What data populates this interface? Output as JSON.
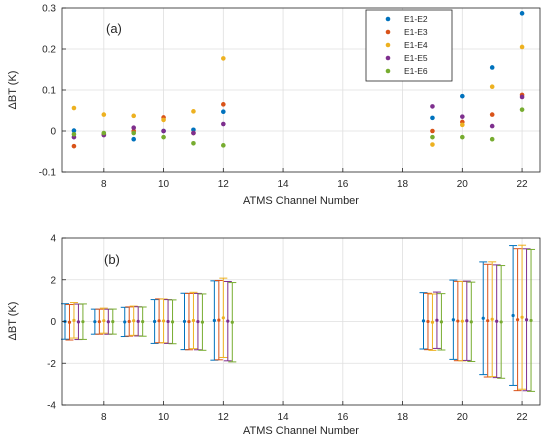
{
  "chart_data": [
    {
      "type": "scatter",
      "panel_label": "(a)",
      "xlabel": "ATMS Channel Number",
      "ylabel": "ΔBT (K)",
      "xlim": [
        6.6,
        22.6
      ],
      "ylim": [
        -0.1,
        0.3
      ],
      "xticks": [
        8,
        10,
        12,
        14,
        16,
        18,
        20,
        22
      ],
      "yticks": [
        -0.1,
        0,
        0.1,
        0.2,
        0.3
      ],
      "ytick_labels": [
        "-0.1",
        "0",
        "0.1",
        "0.2",
        "0.3"
      ],
      "grid": true,
      "legend": "top-right",
      "categories": [
        7,
        8,
        9,
        10,
        11,
        12,
        19,
        20,
        21,
        22
      ],
      "series": [
        {
          "name": "E1-E2",
          "color": "#0072BD",
          "values": [
            0.001,
            -0.008,
            -0.02,
            0.0,
            0.003,
            0.047,
            0.032,
            0.085,
            0.155,
            0.287
          ]
        },
        {
          "name": "E1-E3",
          "color": "#D95319",
          "values": [
            -0.037,
            -0.008,
            0.0,
            0.033,
            -0.005,
            0.065,
            0.0,
            0.022,
            0.04,
            0.088
          ]
        },
        {
          "name": "E1-E4",
          "color": "#EDB120",
          "values": [
            0.056,
            0.04,
            0.037,
            0.027,
            0.048,
            0.177,
            -0.033,
            0.015,
            0.108,
            0.205
          ]
        },
        {
          "name": "E1-E5",
          "color": "#7E2F8E",
          "values": [
            -0.015,
            -0.01,
            0.008,
            0.0,
            -0.005,
            0.017,
            0.06,
            0.035,
            0.012,
            0.083
          ]
        },
        {
          "name": "E1-E6",
          "color": "#77AC30",
          "values": [
            -0.008,
            -0.005,
            -0.005,
            -0.015,
            -0.03,
            -0.035,
            -0.015,
            -0.015,
            -0.02,
            0.052
          ]
        }
      ]
    },
    {
      "type": "errorbar",
      "panel_label": "(b)",
      "xlabel": "ATMS Channel Number",
      "ylabel": "ΔBT (K)",
      "xlim": [
        6.6,
        22.6
      ],
      "ylim": [
        -4,
        4
      ],
      "xticks": [
        8,
        10,
        12,
        14,
        16,
        18,
        20,
        22
      ],
      "yticks": [
        -4,
        -2,
        0,
        2,
        4
      ],
      "ytick_labels": [
        "-4",
        "-2",
        "0",
        "2",
        "4"
      ],
      "grid": true,
      "categories": [
        7,
        8,
        9,
        10,
        11,
        12,
        19,
        20,
        21,
        22
      ],
      "offsets": [
        -0.3,
        -0.15,
        0,
        0.15,
        0.3
      ],
      "series": [
        {
          "name": "E1-E2",
          "color": "#0072BD",
          "values": [
            0.001,
            -0.008,
            -0.02,
            0.0,
            0.003,
            0.047,
            0.032,
            0.085,
            0.155,
            0.287
          ],
          "errors": [
            0.85,
            0.6,
            0.7,
            1.05,
            1.35,
            1.9,
            1.35,
            1.9,
            2.7,
            3.35
          ]
        },
        {
          "name": "E1-E3",
          "color": "#D95319",
          "values": [
            -0.037,
            -0.008,
            0.0,
            0.033,
            -0.005,
            0.065,
            0.0,
            0.022,
            0.04,
            0.088
          ],
          "errors": [
            0.85,
            0.6,
            0.7,
            1.05,
            1.35,
            1.9,
            1.35,
            1.9,
            2.7,
            3.4
          ]
        },
        {
          "name": "E1-E4",
          "color": "#EDB120",
          "values": [
            0.056,
            0.04,
            0.037,
            0.027,
            0.048,
            0.177,
            -0.033,
            0.015,
            0.108,
            0.205
          ],
          "errors": [
            0.85,
            0.6,
            0.7,
            1.05,
            1.35,
            1.9,
            1.35,
            1.9,
            2.75,
            3.45
          ]
        },
        {
          "name": "E1-E5",
          "color": "#7E2F8E",
          "values": [
            -0.015,
            -0.01,
            0.008,
            0.0,
            -0.005,
            0.017,
            0.06,
            0.035,
            0.012,
            0.083
          ],
          "errors": [
            0.85,
            0.6,
            0.7,
            1.05,
            1.35,
            1.9,
            1.35,
            1.9,
            2.7,
            3.4
          ]
        },
        {
          "name": "E1-E6",
          "color": "#77AC30",
          "values": [
            -0.008,
            -0.005,
            -0.005,
            -0.015,
            -0.03,
            -0.035,
            -0.015,
            -0.015,
            -0.02,
            0.052
          ],
          "errors": [
            0.85,
            0.6,
            0.7,
            1.05,
            1.35,
            1.9,
            1.35,
            1.9,
            2.7,
            3.4
          ]
        }
      ]
    }
  ]
}
